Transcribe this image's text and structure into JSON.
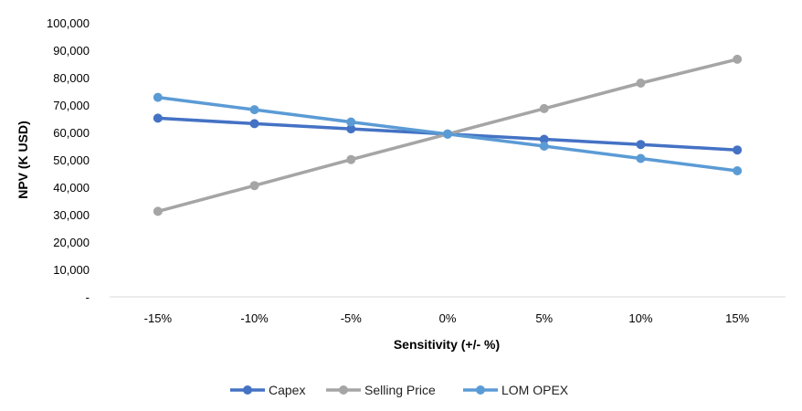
{
  "chart_data": {
    "type": "line",
    "title": "",
    "xlabel": "Sensitivity (+/- %)",
    "ylabel": "NPV (K USD)",
    "categories": [
      "-15%",
      "-10%",
      "-5%",
      "0%",
      "5%",
      "10%",
      "15%"
    ],
    "ylim": [
      0,
      100000
    ],
    "y_ticks": [
      {
        "value": 0,
        "label": "-"
      },
      {
        "value": 10000,
        "label": "10,000"
      },
      {
        "value": 20000,
        "label": "20,000"
      },
      {
        "value": 30000,
        "label": "30,000"
      },
      {
        "value": 40000,
        "label": "40,000"
      },
      {
        "value": 50000,
        "label": "50,000"
      },
      {
        "value": 60000,
        "label": "60,000"
      },
      {
        "value": 70000,
        "label": "70,000"
      },
      {
        "value": 80000,
        "label": "80,000"
      },
      {
        "value": 90000,
        "label": "90,000"
      },
      {
        "value": 100000,
        "label": "100,000"
      }
    ],
    "grid": false,
    "legend_position": "bottom",
    "series": [
      {
        "name": "Capex",
        "color": "#4472C4",
        "values": [
          65200,
          63200,
          61300,
          59400,
          57500,
          55600,
          53600
        ]
      },
      {
        "name": "Selling Price",
        "color": "#A5A5A5",
        "values": [
          31200,
          40600,
          50100,
          59400,
          68700,
          78000,
          86700
        ]
      },
      {
        "name": "LOM OPEX",
        "color": "#5B9BD5",
        "values": [
          72800,
          68300,
          63800,
          59400,
          55000,
          50500,
          46000
        ]
      }
    ]
  }
}
